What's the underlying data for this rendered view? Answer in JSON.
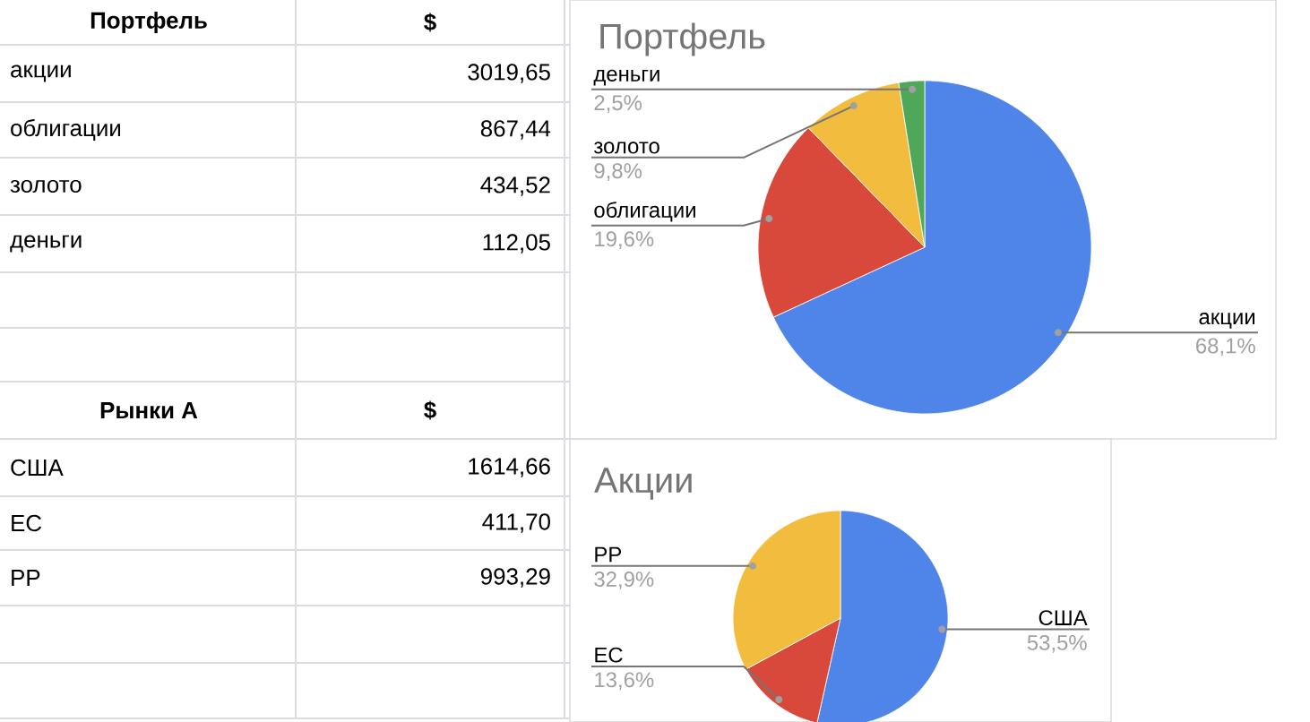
{
  "chart_data": [
    {
      "type": "pie",
      "title": "Портфель",
      "categories": [
        "акции",
        "облигации",
        "золото",
        "деньги"
      ],
      "values": [
        68.1,
        19.6,
        9.8,
        2.5
      ],
      "colors": [
        "#4f84e8",
        "#d9493b",
        "#f2bd3f",
        "#4fa85a"
      ],
      "value_labels": [
        "68,1%",
        "19,6%",
        "9,8%",
        "2,5%"
      ],
      "annotations": [
        "Портфель",
        "$",
        "3019,65",
        "867,44",
        "434,52",
        "112,05"
      ]
    },
    {
      "type": "pie",
      "title": "Акции",
      "categories": [
        "США",
        "ЕС",
        "РР"
      ],
      "values": [
        53.5,
        13.6,
        32.9
      ],
      "colors": [
        "#4f84e8",
        "#d9493b",
        "#f2bd3f"
      ],
      "value_labels": [
        "53,5%",
        "13,6%",
        "32,9%"
      ],
      "annotations": [
        "Рынки А",
        "$",
        "1614,66",
        "411,70",
        "993,29"
      ]
    }
  ]
}
